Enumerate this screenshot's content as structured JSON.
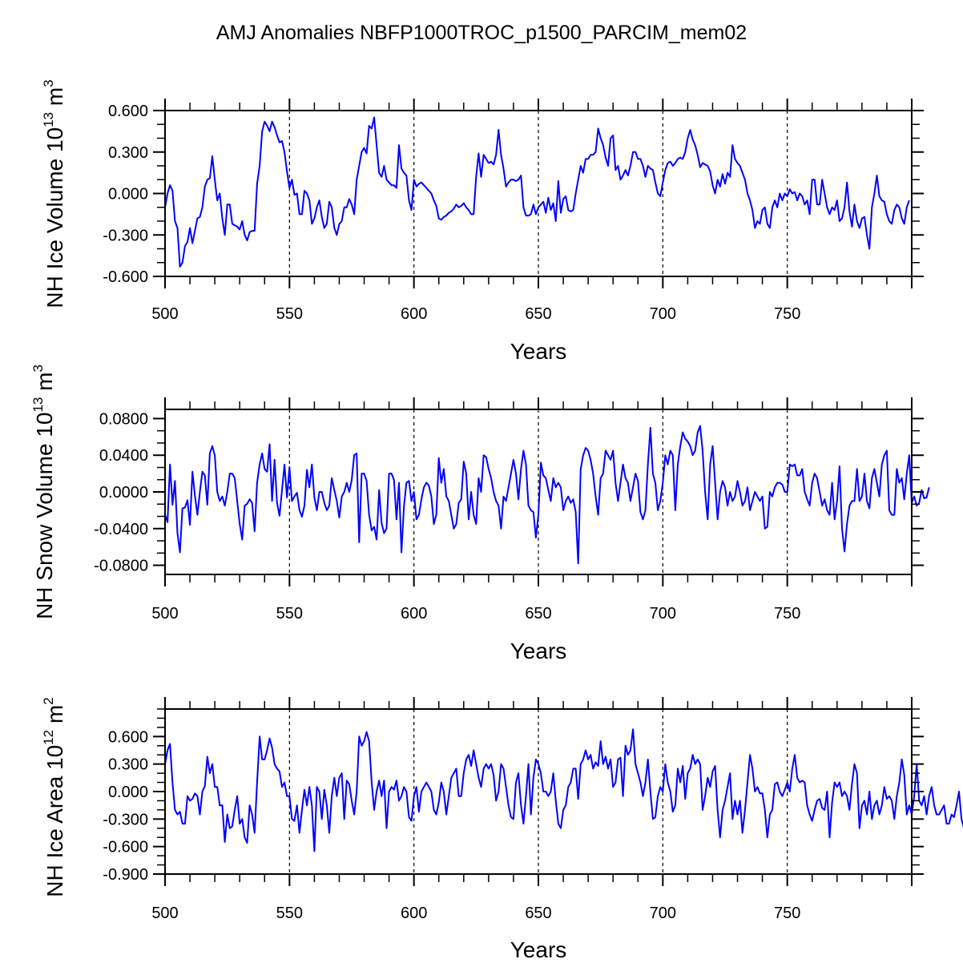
{
  "chart_data": {
    "type": "line",
    "title": "AMJ Anomalies NBFP1000TROC_p1500_PARCIM_mem02",
    "line_color": "#0000ff",
    "panels": [
      {
        "xlabel": "Years",
        "ylabel": "NH Ice Volume 10",
        "ylabel_exp": "13",
        "ylabel_unit": " m",
        "ylabel_unit_exp": "3",
        "xlim": [
          500,
          800
        ],
        "ylim": [
          -0.6,
          0.6
        ],
        "xticks": [
          500,
          550,
          600,
          650,
          700,
          750
        ],
        "xtick_labels": [
          "500",
          "550",
          "600",
          "650",
          "700",
          "750"
        ],
        "yticks": [
          0.6,
          0.3,
          0.0,
          -0.3,
          -0.6
        ],
        "ytick_labels": [
          "0.600",
          "0.300",
          "0.000",
          "-0.300",
          "-0.600"
        ],
        "ref_lines_x": [
          550,
          600,
          650,
          700,
          750
        ],
        "x_start": 500,
        "values": [
          -0.1,
          0.0,
          0.06,
          0.02,
          -0.2,
          -0.25,
          -0.53,
          -0.5,
          -0.38,
          -0.35,
          -0.25,
          -0.36,
          -0.27,
          -0.18,
          -0.17,
          -0.1,
          0.05,
          0.1,
          0.11,
          0.27,
          0.1,
          -0.05,
          0.0,
          -0.18,
          -0.3,
          -0.08,
          -0.08,
          -0.22,
          -0.23,
          -0.24,
          -0.26,
          -0.2,
          -0.3,
          -0.34,
          -0.28,
          -0.27,
          -0.27,
          0.07,
          0.2,
          0.45,
          0.52,
          0.49,
          0.45,
          0.52,
          0.48,
          0.42,
          0.37,
          0.38,
          0.3,
          0.16,
          0.04,
          0.1,
          -0.01,
          0.0,
          -0.15,
          -0.15,
          0.02,
          0.0,
          -0.05,
          -0.22,
          -0.18,
          -0.1,
          -0.05,
          -0.17,
          -0.25,
          -0.22,
          -0.06,
          -0.1,
          -0.25,
          -0.3,
          -0.22,
          -0.2,
          -0.1,
          -0.1,
          -0.04,
          -0.08,
          -0.15,
          0.1,
          0.2,
          0.3,
          0.33,
          0.29,
          0.49,
          0.47,
          0.55,
          0.35,
          0.15,
          0.12,
          0.2,
          0.1,
          0.08,
          0.06,
          0.06,
          0.04,
          0.35,
          0.18,
          0.15,
          0.13,
          -0.05,
          -0.12,
          0.1,
          0.05,
          0.07,
          0.08,
          0.06,
          0.04,
          0.02,
          0.0,
          -0.05,
          -0.09,
          -0.18,
          -0.19,
          -0.17,
          -0.16,
          -0.14,
          -0.13,
          -0.11,
          -0.08,
          -0.1,
          -0.09,
          -0.07,
          -0.1,
          -0.12,
          -0.15,
          -0.15,
          0.12,
          0.29,
          0.12,
          0.28,
          0.25,
          0.22,
          0.23,
          0.21,
          0.28,
          0.46,
          0.28,
          0.18,
          0.05,
          0.08,
          0.1,
          0.1,
          0.09,
          0.1,
          0.13,
          -0.1,
          -0.16,
          -0.16,
          -0.15,
          -0.08,
          -0.15,
          -0.1,
          -0.08,
          -0.06,
          -0.14,
          -0.03,
          -0.12,
          -0.07,
          -0.2,
          0.09,
          -0.14,
          -0.04,
          -0.02,
          -0.12,
          -0.13,
          -0.12,
          0.0,
          0.1,
          0.2,
          0.15,
          0.25,
          0.25,
          0.28,
          0.28,
          0.3,
          0.47,
          0.4,
          0.35,
          0.26,
          0.2,
          0.4,
          0.42,
          0.17,
          0.2,
          0.1,
          0.13,
          0.17,
          0.13,
          0.2,
          0.3,
          0.3,
          0.25,
          0.25,
          0.2,
          0.12,
          0.2,
          0.18,
          0.17,
          0.08,
          0.0,
          -0.02,
          0.08,
          0.17,
          0.22,
          0.23,
          0.2,
          0.22,
          0.25,
          0.26,
          0.25,
          0.3,
          0.4,
          0.46,
          0.39,
          0.35,
          0.28,
          0.19,
          0.22,
          0.21,
          0.2,
          0.16,
          0.06,
          0.0,
          0.1,
          0.05,
          0.14,
          0.07,
          0.15,
          0.12,
          0.35,
          0.25,
          0.22,
          0.2,
          0.15,
          0.1,
          0.0,
          -0.05,
          -0.12,
          -0.25,
          -0.2,
          -0.22,
          -0.12,
          -0.1,
          -0.22,
          -0.25,
          -0.1,
          -0.05,
          -0.1,
          0.0,
          -0.05,
          0.0,
          -0.02,
          0.03,
          0.0,
          0.01,
          -0.05,
          0.0,
          -0.02,
          -0.08,
          -0.05,
          -0.15,
          0.1,
          0.1,
          -0.08,
          -0.08,
          0.1,
          0.0,
          -0.1,
          -0.15,
          -0.1,
          -0.12,
          -0.05,
          -0.2,
          -0.18,
          -0.1,
          0.08,
          -0.13,
          -0.24,
          -0.08,
          -0.2,
          -0.25,
          -0.18,
          -0.17,
          -0.3,
          -0.4,
          -0.1,
          0.0,
          0.13,
          -0.02,
          -0.05,
          -0.06,
          -0.15,
          -0.2,
          -0.22,
          -0.12,
          -0.08,
          -0.1,
          -0.18,
          -0.22,
          -0.1,
          -0.05
        ]
      },
      {
        "xlabel": "Years",
        "ylabel": "NH Snow Volume 10",
        "ylabel_exp": "13",
        "ylabel_unit": " m",
        "ylabel_unit_exp": "3",
        "xlim": [
          500,
          800
        ],
        "ylim": [
          -0.09,
          0.09
        ],
        "xticks": [
          500,
          550,
          600,
          650,
          700,
          750
        ],
        "xtick_labels": [
          "500",
          "550",
          "600",
          "650",
          "700",
          "750"
        ],
        "yticks": [
          0.08,
          0.04,
          0.0,
          -0.04,
          -0.08
        ],
        "ytick_labels": [
          "0.0800",
          "0.0400",
          "0.0000",
          "-0.0400",
          "-0.0800"
        ],
        "ref_lines_x": [
          550,
          600,
          650,
          700,
          750
        ],
        "x_start": 500,
        "values": [
          -0.025,
          -0.033,
          0.03,
          -0.014,
          0.012,
          -0.045,
          -0.066,
          -0.018,
          -0.017,
          -0.009,
          -0.036,
          0.022,
          -0.004,
          -0.025,
          0.0,
          0.022,
          0.018,
          -0.014,
          0.042,
          0.05,
          0.04,
          0.0,
          -0.01,
          -0.005,
          -0.015,
          0.0,
          0.02,
          0.02,
          0.015,
          -0.01,
          -0.035,
          -0.052,
          -0.015,
          -0.013,
          -0.008,
          -0.012,
          -0.043,
          0.01,
          0.03,
          0.042,
          0.025,
          0.022,
          0.052,
          -0.01,
          0.035,
          -0.012,
          -0.026,
          0.002,
          0.03,
          -0.006,
          0.027,
          -0.01,
          -0.005,
          -0.001,
          -0.02,
          -0.027,
          -0.015,
          0.024,
          0.005,
          0.03,
          -0.006,
          -0.02,
          0.0,
          0.0,
          -0.012,
          -0.02,
          -0.015,
          0.015,
          0.002,
          -0.01,
          -0.028,
          -0.005,
          0.0,
          0.01,
          0.0,
          0.013,
          0.04,
          0.042,
          -0.055,
          0.02,
          0.02,
          0.012,
          -0.025,
          -0.042,
          -0.038,
          -0.052,
          0.002,
          -0.034,
          -0.045,
          -0.04,
          0.02,
          0.02,
          0.013,
          -0.03,
          0.01,
          -0.066,
          -0.016,
          0.01,
          0.012,
          -0.01,
          0.0,
          -0.03,
          -0.025,
          -0.008,
          0.005,
          0.01,
          0.007,
          -0.005,
          -0.035,
          -0.025,
          0.037,
          0.01,
          0.025,
          -0.005,
          -0.01,
          -0.025,
          -0.04,
          -0.035,
          -0.012,
          -0.008,
          0.033,
          0.02,
          -0.03,
          0.0,
          -0.025,
          -0.035,
          0.015,
          0.0,
          0.04,
          0.038,
          0.025,
          0.015,
          0.0,
          -0.01,
          -0.015,
          -0.04,
          -0.005,
          -0.01,
          0.005,
          0.02,
          0.035,
          0.02,
          -0.008,
          0.025,
          0.045,
          0.03,
          -0.015,
          -0.02,
          -0.022,
          -0.05,
          -0.025,
          0.032,
          0.018,
          0.015,
          0.002,
          -0.01,
          0.015,
          0.005,
          0.01,
          0.005,
          -0.02,
          -0.01,
          -0.005,
          -0.012,
          -0.008,
          -0.022,
          -0.078,
          0.025,
          0.04,
          0.048,
          0.045,
          0.035,
          0.02,
          -0.005,
          -0.025,
          0.015,
          0.02,
          0.045,
          0.04,
          0.035,
          0.045,
          0.01,
          -0.01,
          0.01,
          0.03,
          0.015,
          0.01,
          -0.01,
          0.005,
          0.02,
          0.012,
          -0.022,
          -0.03,
          -0.02,
          0.03,
          0.07,
          0.02,
          0.01,
          -0.02,
          -0.01,
          0.01,
          0.04,
          0.03,
          0.045,
          0.04,
          -0.02,
          0.03,
          0.05,
          0.065,
          0.058,
          0.055,
          0.05,
          0.04,
          0.045,
          0.065,
          0.072,
          0.045,
          0.0,
          -0.03,
          0.03,
          0.05,
          0.01,
          -0.03,
          0.0,
          0.012,
          0.005,
          -0.015,
          0.0,
          -0.01,
          -0.005,
          0.012,
          0.0,
          -0.015,
          -0.01,
          0.005,
          -0.02,
          -0.01,
          0.0,
          -0.005,
          -0.01,
          -0.005,
          -0.04,
          -0.038,
          0.0,
          -0.005,
          0.005,
          0.01,
          0.01,
          0.008,
          0.0,
          0.0,
          0.03,
          0.028,
          0.03,
          0.018,
          0.018,
          0.025,
          0.0,
          -0.008,
          -0.015,
          0.01,
          0.02,
          0.015,
          0.0,
          -0.015,
          -0.008,
          -0.02,
          -0.025,
          0.01,
          -0.03,
          -0.01,
          0.028,
          -0.04,
          -0.065,
          -0.035,
          -0.015,
          -0.01,
          -0.01,
          0.025,
          -0.01,
          -0.005,
          0.02,
          -0.01,
          -0.018,
          0.015,
          0.025,
          0.01,
          -0.005,
          0.03,
          0.04,
          0.045,
          -0.02,
          -0.025,
          -0.025,
          0.025,
          0.01,
          0.015,
          -0.008,
          0.02,
          0.04,
          -0.012,
          -0.005,
          -0.015,
          -0.012,
          0.002,
          -0.007,
          -0.006,
          0.005
        ]
      },
      {
        "xlabel": "Years",
        "ylabel": "NH Ice Area 10",
        "ylabel_exp": "12",
        "ylabel_unit": " m",
        "ylabel_unit_exp": "2",
        "xlim": [
          500,
          800
        ],
        "ylim": [
          -0.9,
          0.9
        ],
        "xticks": [
          500,
          550,
          600,
          650,
          700,
          750
        ],
        "xtick_labels": [
          "500",
          "550",
          "600",
          "650",
          "700",
          "750"
        ],
        "yticks": [
          0.6,
          0.3,
          0.0,
          -0.3,
          -0.6,
          -0.9
        ],
        "ytick_labels": [
          "0.600",
          "0.300",
          "0.000",
          "-0.300",
          "-0.600",
          "-0.900"
        ],
        "ref_lines_x": [
          550,
          600,
          650,
          700,
          750
        ],
        "x_start": 500,
        "values": [
          0.3,
          0.45,
          0.52,
          0.1,
          -0.2,
          -0.25,
          -0.22,
          -0.35,
          -0.35,
          -0.05,
          -0.1,
          -0.08,
          -0.02,
          -0.05,
          -0.25,
          0.0,
          0.06,
          0.38,
          0.2,
          0.3,
          0.05,
          0.05,
          -0.15,
          -0.15,
          -0.55,
          -0.25,
          -0.4,
          -0.38,
          -0.2,
          -0.05,
          -0.35,
          -0.3,
          -0.5,
          -0.56,
          -0.15,
          -0.25,
          -0.45,
          0.1,
          0.6,
          0.35,
          0.35,
          0.45,
          0.58,
          0.48,
          0.3,
          0.25,
          0.22,
          0.05,
          0.1,
          -0.05,
          -0.05,
          -0.3,
          -0.32,
          -0.15,
          -0.45,
          -0.2,
          0.02,
          -0.15,
          0.05,
          -0.15,
          -0.65,
          0.05,
          0.0,
          -0.3,
          0.02,
          -0.15,
          -0.45,
          -0.05,
          0.15,
          -0.05,
          0.15,
          0.2,
          -0.3,
          0.12,
          0.08,
          -0.1,
          -0.25,
          0.0,
          0.6,
          0.5,
          0.55,
          0.65,
          0.55,
          0.1,
          -0.2,
          0.0,
          0.12,
          -0.05,
          0.12,
          -0.4,
          0.0,
          0.05,
          0.02,
          0.12,
          -0.1,
          -0.05,
          0.05,
          0.0,
          -0.28,
          -0.32,
          -0.05,
          0.05,
          -0.22,
          0.0,
          0.05,
          0.1,
          0.05,
          0.0,
          -0.2,
          -0.25,
          -0.12,
          0.1,
          0.0,
          -0.25,
          -0.05,
          0.15,
          0.2,
          0.25,
          -0.05,
          -0.05,
          0.2,
          0.35,
          0.4,
          0.28,
          0.45,
          0.3,
          0.15,
          0.05,
          0.25,
          0.3,
          0.25,
          0.3,
          0.18,
          -0.1,
          0.0,
          0.3,
          0.25,
          0.05,
          -0.15,
          -0.28,
          -0.3,
          0.1,
          0.2,
          -0.15,
          -0.35,
          -0.05,
          0.3,
          -0.25,
          0.15,
          0.35,
          0.3,
          0.2,
          0.0,
          0.0,
          -0.05,
          0.0,
          0.2,
          -0.1,
          -0.35,
          -0.4,
          -0.2,
          -0.15,
          0.05,
          0.1,
          0.25,
          0.25,
          -0.08,
          0.3,
          0.35,
          0.45,
          0.35,
          0.4,
          0.25,
          0.32,
          0.28,
          0.55,
          0.3,
          0.38,
          0.25,
          0.35,
          0.05,
          0.1,
          0.35,
          0.37,
          -0.05,
          0.5,
          0.4,
          0.45,
          0.68,
          0.3,
          0.2,
          0.1,
          -0.05,
          0.1,
          0.35,
          0.0,
          -0.3,
          -0.28,
          -0.05,
          0.05,
          0.0,
          0.3,
          0.1,
          0.0,
          -0.22,
          -0.15,
          0.25,
          0.1,
          0.28,
          -0.08,
          0.2,
          0.25,
          0.4,
          0.3,
          0.35,
          0.3,
          -0.2,
          -0.05,
          0.15,
          0.05,
          0.22,
          0.28,
          -0.2,
          -0.5,
          -0.2,
          -0.1,
          0.05,
          0.2,
          -0.3,
          -0.1,
          -0.25,
          -0.1,
          -0.45,
          -0.2,
          0.1,
          0.4,
          0.25,
          0.0,
          0.05,
          -0.02,
          -0.02,
          -0.2,
          -0.5,
          -0.25,
          -0.2,
          0.08,
          0.1,
          0.0,
          -0.05,
          0.02,
          0.1,
          0.0,
          0.25,
          0.4,
          0.15,
          0.1,
          0.12,
          0.1,
          -0.15,
          -0.25,
          -0.32,
          -0.2,
          -0.1,
          -0.08,
          -0.18,
          -0.2,
          0.0,
          -0.5,
          -0.12,
          0.1,
          0.05,
          0.1,
          -0.05,
          0.0,
          -0.05,
          -0.2,
          0.08,
          0.3,
          0.2,
          -0.4,
          -0.15,
          -0.1,
          -0.25,
          0.0,
          -0.3,
          -0.15,
          -0.1,
          -0.25,
          -0.15,
          0.05,
          -0.08,
          -0.05,
          -0.1,
          -0.3,
          -0.05,
          0.1,
          0.35,
          0.18,
          -0.25,
          -0.15,
          -0.25,
          -0.05,
          0.3,
          -0.1,
          -0.15,
          -0.05,
          -0.25,
          -0.05,
          0.05,
          -0.15,
          -0.25,
          -0.25,
          -0.2,
          -0.15,
          -0.35,
          -0.35,
          -0.25,
          -0.28,
          -0.15,
          0.0,
          -0.3,
          -0.4,
          -0.05,
          0.0
        ]
      }
    ]
  }
}
